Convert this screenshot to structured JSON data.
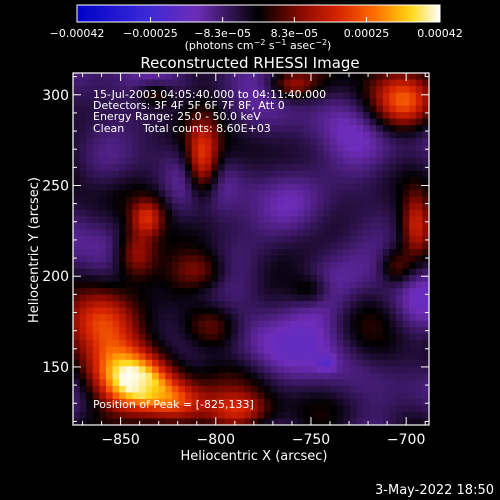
{
  "chart_data": {
    "type": "heatmap",
    "title": "Reconstructed RHESSI Image",
    "xlabel": "Heliocentric X (arcsec)",
    "ylabel": "Heliocentric Y (arcsec)",
    "xlim": [
      -875,
      -688
    ],
    "ylim": [
      118,
      312
    ],
    "x_ticks": [
      {
        "value": -850,
        "label": "−850"
      },
      {
        "value": -800,
        "label": "−800"
      },
      {
        "value": -750,
        "label": "−750"
      },
      {
        "value": -700,
        "label": "−700"
      }
    ],
    "y_ticks": [
      {
        "value": 150,
        "label": "150"
      },
      {
        "value": 200,
        "label": "200"
      },
      {
        "value": 250,
        "label": "250"
      },
      {
        "value": 300,
        "label": "300"
      }
    ],
    "colorbar": {
      "range": [
        -0.00042,
        0.00042
      ],
      "ticks": [
        {
          "value": -0.00042,
          "label": "−0.00042"
        },
        {
          "value": -0.00025,
          "label": "−0.00025"
        },
        {
          "value": -8.3e-05,
          "label": "−8.3e−05"
        },
        {
          "value": 8.3e-05,
          "label": "8.3e−05"
        },
        {
          "value": 0.00025,
          "label": "0.00025"
        },
        {
          "value": 0.00042,
          "label": "0.00042"
        }
      ],
      "unit_main": "(photons cm",
      "unit_sup1": "−2",
      "unit_mid": " s",
      "unit_sup2": "−1",
      "unit_end": " asec",
      "unit_sup3": "−2",
      "unit_close": ")"
    },
    "annotations": {
      "time_range": "15-Jul-2003 04:05:40.000 to 04:11:40.000",
      "detectors": "Detectors: 3F 4F 5F 6F 7F 8F, Att 0",
      "energy": "Energy Range: 25.0 - 50.0 keV",
      "method": "Clean",
      "counts": "Total counts: 8.60E+03",
      "peak": "Position of Peak = [-825,133]"
    },
    "hotspots": [
      {
        "x": -838,
        "y": 140,
        "w": 0.95,
        "sx": 13,
        "sy": 11
      },
      {
        "x": -820,
        "y": 130,
        "w": 0.75,
        "sx": 11,
        "sy": 9
      },
      {
        "x": -855,
        "y": 150,
        "w": 0.65,
        "sx": 14,
        "sy": 13
      },
      {
        "x": -860,
        "y": 175,
        "w": 0.55,
        "sx": 14,
        "sy": 12
      },
      {
        "x": -842,
        "y": 212,
        "w": 0.6,
        "sx": 8,
        "sy": 10
      },
      {
        "x": -836,
        "y": 232,
        "w": 0.5,
        "sx": 6,
        "sy": 7
      },
      {
        "x": -807,
        "y": 262,
        "w": 0.75,
        "sx": 6,
        "sy": 14
      },
      {
        "x": -788,
        "y": 125,
        "w": 0.45,
        "sx": 12,
        "sy": 7
      },
      {
        "x": -802,
        "y": 172,
        "w": 0.35,
        "sx": 10,
        "sy": 8
      },
      {
        "x": -700,
        "y": 295,
        "w": 0.7,
        "sx": 12,
        "sy": 11
      },
      {
        "x": -695,
        "y": 228,
        "w": 0.45,
        "sx": 5,
        "sy": 12
      },
      {
        "x": -760,
        "y": 305,
        "w": 0.35,
        "sx": 8,
        "sy": 5
      },
      {
        "x": -832,
        "y": 300,
        "w": 0.35,
        "sx": 7,
        "sy": 5
      },
      {
        "x": -808,
        "y": 203,
        "w": 0.3,
        "sx": 10,
        "sy": 7
      },
      {
        "x": -705,
        "y": 205,
        "w": 0.35,
        "sx": 6,
        "sy": 7
      },
      {
        "x": -750,
        "y": 192,
        "w": 0.25,
        "sx": 7,
        "sy": 6
      }
    ],
    "coldspots": [
      {
        "x": -748,
        "y": 168,
        "w": 0.45,
        "sx": 18,
        "sy": 20
      },
      {
        "x": -770,
        "y": 228,
        "w": 0.35,
        "sx": 16,
        "sy": 18
      },
      {
        "x": -728,
        "y": 265,
        "w": 0.35,
        "sx": 14,
        "sy": 16
      },
      {
        "x": -792,
        "y": 285,
        "w": 0.3,
        "sx": 12,
        "sy": 10
      },
      {
        "x": -858,
        "y": 290,
        "w": 0.3,
        "sx": 12,
        "sy": 12
      },
      {
        "x": -742,
        "y": 152,
        "w": 0.55,
        "sx": 3,
        "sy": 3
      }
    ]
  },
  "footer": {
    "timestamp": "3-May-2022 18:50"
  }
}
